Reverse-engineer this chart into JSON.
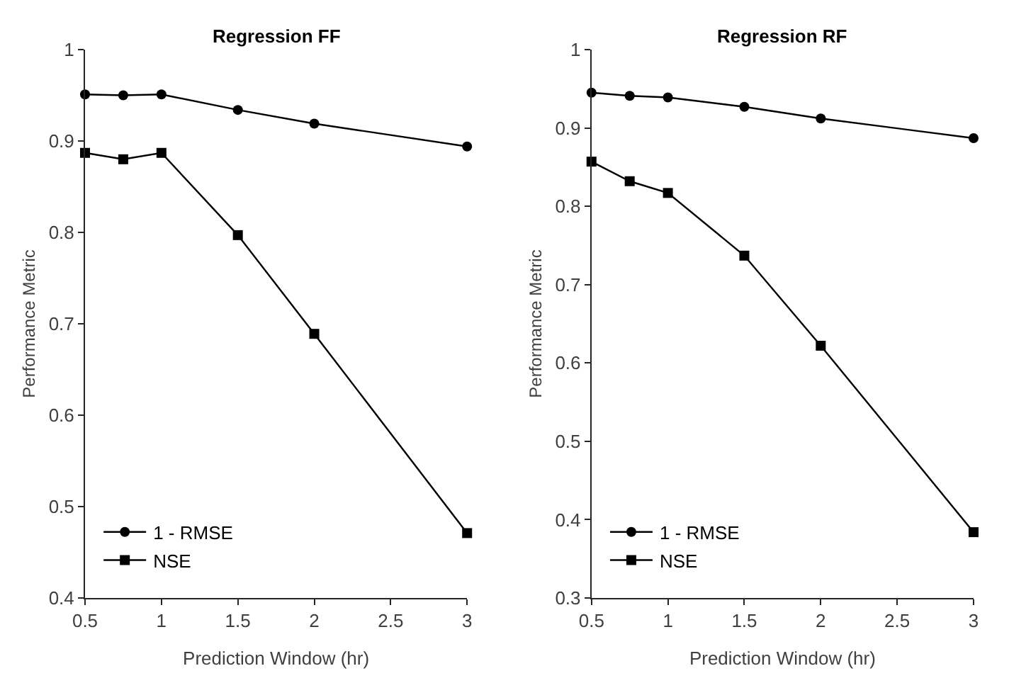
{
  "chart_data": [
    {
      "type": "line",
      "title": "Regression FF",
      "xlabel": "Prediction Window (hr)",
      "ylabel": "Performance Metric",
      "x": [
        0.5,
        0.75,
        1,
        1.5,
        2,
        3
      ],
      "xlim": [
        0.5,
        3
      ],
      "xticks": [
        0.5,
        1,
        1.5,
        2,
        2.5,
        3
      ],
      "ylim": [
        0.4,
        1
      ],
      "yticks": [
        0.4,
        0.5,
        0.6,
        0.7,
        0.8,
        0.9,
        1
      ],
      "legend": "bottom left",
      "line_style": "solid",
      "series": [
        {
          "name": "1 - RMSE",
          "color": "#000000",
          "marker": "circle",
          "values": [
            0.951,
            0.95,
            0.951,
            0.934,
            0.919,
            0.894
          ]
        },
        {
          "name": "NSE",
          "color": "#000000",
          "marker": "square",
          "values": [
            0.887,
            0.88,
            0.887,
            0.797,
            0.689,
            0.471
          ]
        }
      ]
    },
    {
      "type": "line",
      "title": "Regression RF",
      "xlabel": "Prediction Window (hr)",
      "ylabel": "Performance Metric",
      "x": [
        0.5,
        0.75,
        1,
        1.5,
        2,
        3
      ],
      "xlim": [
        0.5,
        3
      ],
      "xticks": [
        0.5,
        1,
        1.5,
        2,
        2.5,
        3
      ],
      "ylim": [
        0.3,
        1
      ],
      "yticks": [
        0.3,
        0.4,
        0.5,
        0.6,
        0.7,
        0.8,
        0.9,
        1
      ],
      "legend": "bottom left",
      "line_style": "solid",
      "series": [
        {
          "name": "1 - RMSE",
          "color": "#000000",
          "marker": "circle",
          "values": [
            0.945,
            0.941,
            0.939,
            0.927,
            0.912,
            0.887
          ]
        },
        {
          "name": "NSE",
          "color": "#000000",
          "marker": "square",
          "values": [
            0.857,
            0.832,
            0.817,
            0.737,
            0.622,
            0.384
          ]
        }
      ]
    }
  ]
}
